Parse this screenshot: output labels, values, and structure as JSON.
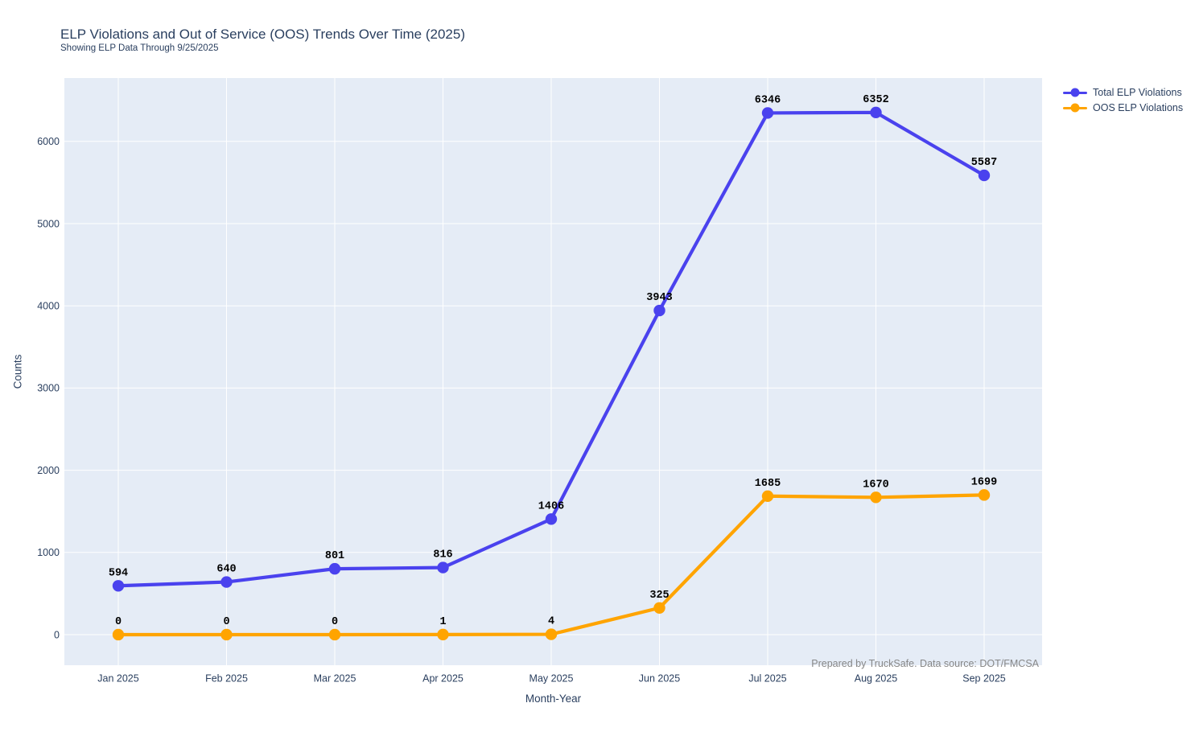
{
  "chart_data": {
    "type": "line",
    "title": "ELP Violations and Out of Service (OOS) Trends Over Time (2025)",
    "subtitle": "Showing ELP Data Through 9/25/2025",
    "xlabel": "Month-Year",
    "ylabel": "Counts",
    "categories": [
      "Jan 2025",
      "Feb 2025",
      "Mar 2025",
      "Apr 2025",
      "May 2025",
      "Jun 2025",
      "Jul 2025",
      "Aug 2025",
      "Sep 2025"
    ],
    "series": [
      {
        "name": "Total ELP Violations",
        "color": "#4a42ee",
        "values": [
          594,
          640,
          801,
          816,
          1406,
          3943,
          6346,
          6352,
          5587
        ]
      },
      {
        "name": "OOS ELP Violations",
        "color": "#ffa400",
        "values": [
          0,
          0,
          0,
          1,
          4,
          325,
          1685,
          1670,
          1699
        ]
      }
    ],
    "yticks": [
      0,
      1000,
      2000,
      3000,
      4000,
      5000,
      6000
    ],
    "ylim": [
      -372,
      6771
    ],
    "grid": true,
    "data_labels": true,
    "legend_position": "top-right-outside",
    "annotation": "Prepared by TruckSafe. Data source: DOT/FMCSA"
  },
  "colors": {
    "plot_background": "#e5ecf6",
    "gridline": "#ffffff",
    "title_text": "#2a3f5f",
    "tick_text": "#2a3f5f",
    "annotation_text": "#878787",
    "data_label_text": "#000000",
    "page_background": "#ffffff"
  }
}
